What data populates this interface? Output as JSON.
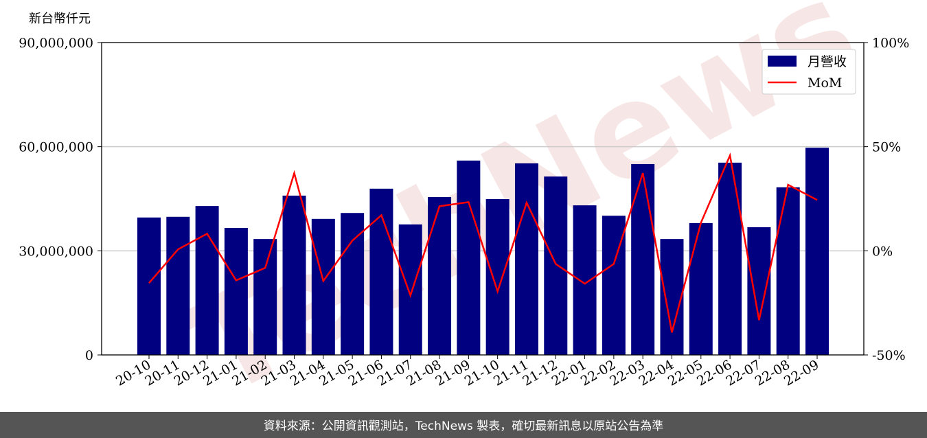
{
  "chart_data": {
    "type": "bar_line",
    "y_axis_label": "新台幣仟元",
    "watermark": "TechNews",
    "source": "資料來源：公開資訊觀測站，TechNews 製表，確切最新訊息以原站公告為準",
    "categories": [
      "20-10",
      "20-11",
      "20-12",
      "21-01",
      "21-02",
      "21-03",
      "21-04",
      "21-05",
      "21-06",
      "21-07",
      "21-08",
      "21-09",
      "21-10",
      "21-11",
      "21-12",
      "22-01",
      "22-02",
      "22-03",
      "22-04",
      "22-05",
      "22-06",
      "22-07",
      "22-08",
      "22-09"
    ],
    "series": [
      {
        "name": "月營收",
        "color": "#000080",
        "values": [
          39600000,
          39800000,
          42900000,
          36600000,
          33400000,
          45900000,
          39200000,
          40900000,
          47900000,
          37600000,
          45500000,
          56000000,
          44900000,
          55200000,
          51400000,
          43100000,
          40100000,
          55000000,
          33400000,
          38000000,
          55400000,
          36800000,
          48300000,
          59700000
        ]
      },
      {
        "name": "MoM",
        "color": "#ff0000",
        "axis": "y2",
        "values": [
          -15.5,
          0.7,
          8.2,
          -14.2,
          -8.2,
          37.3,
          -14.5,
          4.9,
          17.1,
          -21.4,
          21.4,
          23.4,
          -19.5,
          23.1,
          -6.3,
          -15.8,
          -6.3,
          37.3,
          -39.2,
          13.5,
          45.8,
          -33.3,
          31.7,
          24.4
        ]
      }
    ],
    "ylim": [
      0,
      90000000
    ],
    "yticks": [
      {
        "value": 0,
        "label": "0"
      },
      {
        "value": 30000000,
        "label": "30,000,000"
      },
      {
        "value": 60000000,
        "label": "60,000,000"
      },
      {
        "value": 90000000,
        "label": "90,000,000"
      }
    ],
    "y2lim": [
      -50,
      100
    ],
    "y2ticks": [
      {
        "value": -50,
        "label": "-50%"
      },
      {
        "value": 0,
        "label": "0%"
      },
      {
        "value": 50,
        "label": "50%"
      },
      {
        "value": 100,
        "label": "100%"
      }
    ],
    "grid": true,
    "legend": "upper right"
  }
}
